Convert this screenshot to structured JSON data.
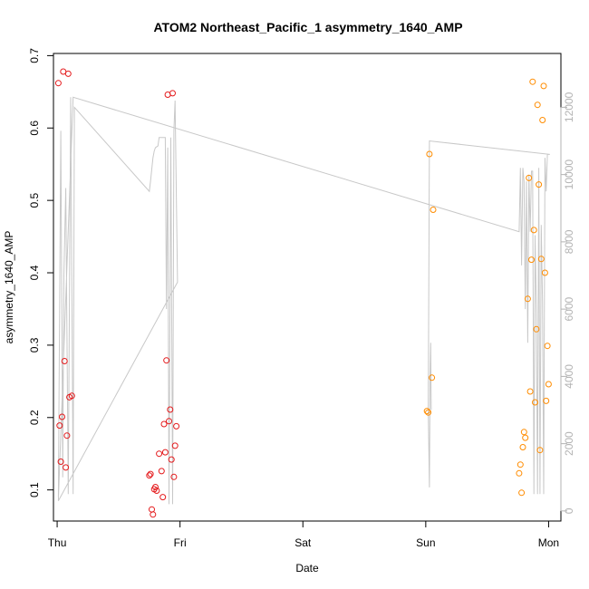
{
  "chart_data": {
    "type": "scatter",
    "title": "ATOM2 Northeast_Pacific_1 asymmetry_1640_AMP",
    "xlabel": "Date",
    "ylabel": "asymmetry_1640_AMP",
    "xlim": [
      -0.03,
      4.1
    ],
    "ylim": [
      0.057,
      0.703
    ],
    "y2lim": [
      -300,
      13600
    ],
    "x_ticks": [
      {
        "value": 0,
        "label": "Thu"
      },
      {
        "value": 1,
        "label": "Fri"
      },
      {
        "value": 2,
        "label": "Sat"
      },
      {
        "value": 3,
        "label": "Sun"
      },
      {
        "value": 4,
        "label": "Mon"
      }
    ],
    "y_ticks": [
      0.1,
      0.2,
      0.3,
      0.4,
      0.5,
      0.6,
      0.7
    ],
    "y2_ticks": [
      0,
      2000,
      4000,
      6000,
      8000,
      10000,
      12000
    ],
    "series": [
      {
        "color": "#e41a1c",
        "points": [
          [
            0.01,
            0.662
          ],
          [
            0.02,
            0.189
          ],
          [
            0.03,
            0.139
          ],
          [
            0.04,
            0.201
          ],
          [
            0.05,
            0.678
          ],
          [
            0.06,
            0.278
          ],
          [
            0.07,
            0.131
          ],
          [
            0.08,
            0.175
          ],
          [
            0.09,
            0.675
          ],
          [
            0.1,
            0.228
          ],
          [
            0.12,
            0.23
          ],
          [
            0.75,
            0.12
          ],
          [
            0.76,
            0.122
          ],
          [
            0.77,
            0.073
          ],
          [
            0.78,
            0.066
          ],
          [
            0.79,
            0.101
          ],
          [
            0.8,
            0.104
          ],
          [
            0.81,
            0.099
          ],
          [
            0.83,
            0.15
          ],
          [
            0.85,
            0.126
          ],
          [
            0.86,
            0.09
          ],
          [
            0.87,
            0.191
          ],
          [
            0.88,
            0.152
          ],
          [
            0.89,
            0.279
          ],
          [
            0.9,
            0.646
          ],
          [
            0.91,
            0.195
          ],
          [
            0.92,
            0.211
          ],
          [
            0.93,
            0.142
          ],
          [
            0.94,
            0.648
          ],
          [
            0.95,
            0.118
          ],
          [
            0.96,
            0.161
          ],
          [
            0.97,
            0.188
          ]
        ]
      },
      {
        "color": "#ff8c00",
        "points": [
          [
            3.01,
            0.209
          ],
          [
            3.02,
            0.207
          ],
          [
            3.03,
            0.564
          ],
          [
            3.05,
            0.255
          ],
          [
            3.06,
            0.487
          ],
          [
            3.76,
            0.123
          ],
          [
            3.77,
            0.135
          ],
          [
            3.78,
            0.096
          ],
          [
            3.79,
            0.159
          ],
          [
            3.8,
            0.18
          ],
          [
            3.81,
            0.172
          ],
          [
            3.83,
            0.364
          ],
          [
            3.84,
            0.531
          ],
          [
            3.85,
            0.236
          ],
          [
            3.86,
            0.418
          ],
          [
            3.87,
            0.664
          ],
          [
            3.88,
            0.459
          ],
          [
            3.89,
            0.221
          ],
          [
            3.9,
            0.322
          ],
          [
            3.91,
            0.632
          ],
          [
            3.92,
            0.522
          ],
          [
            3.93,
            0.155
          ],
          [
            3.94,
            0.419
          ],
          [
            3.95,
            0.611
          ],
          [
            3.96,
            0.658
          ],
          [
            3.97,
            0.4
          ],
          [
            3.98,
            0.223
          ],
          [
            3.99,
            0.299
          ],
          [
            4.0,
            0.246
          ]
        ]
      }
    ],
    "background_line": {
      "color": "#c8c8c8",
      "axis": "right",
      "points": [
        [
          0.01,
          400
        ],
        [
          0.03,
          11300
        ],
        [
          0.045,
          1000
        ],
        [
          0.055,
          7000
        ],
        [
          0.07,
          9600
        ],
        [
          0.09,
          500
        ],
        [
          0.11,
          12300
        ],
        [
          0.13,
          500
        ],
        [
          0.14,
          12000
        ],
        [
          0.75,
          9500
        ],
        [
          0.76,
          9800
        ],
        [
          0.78,
          10500
        ],
        [
          0.79,
          10700
        ],
        [
          0.8,
          10800
        ],
        [
          0.82,
          10850
        ],
        [
          0.83,
          11100
        ],
        [
          0.84,
          11100
        ],
        [
          0.88,
          11100
        ],
        [
          0.89,
          6000
        ],
        [
          0.9,
          10800
        ],
        [
          0.91,
          200
        ],
        [
          0.925,
          11100
        ],
        [
          0.94,
          200
        ],
        [
          0.95,
          11300
        ],
        [
          0.96,
          12200
        ],
        [
          0.98,
          6800
        ],
        [
          0.01,
          300
        ],
        [
          0.13,
          12300
        ],
        [
          3.76,
          8300
        ],
        [
          3.77,
          10200
        ],
        [
          3.78,
          7300
        ],
        [
          3.79,
          10200
        ],
        [
          3.8,
          9800
        ],
        [
          3.81,
          6000
        ],
        [
          3.82,
          9800
        ],
        [
          3.83,
          5000
        ],
        [
          3.84,
          10000
        ],
        [
          3.85,
          8300
        ],
        [
          3.86,
          10100
        ],
        [
          3.87,
          10100
        ],
        [
          3.88,
          500
        ],
        [
          3.89,
          8200
        ],
        [
          3.9,
          6000
        ],
        [
          3.91,
          500
        ],
        [
          3.92,
          10200
        ],
        [
          3.93,
          500
        ],
        [
          3.94,
          8500
        ],
        [
          3.95,
          6200
        ],
        [
          3.96,
          500
        ],
        [
          3.97,
          10500
        ],
        [
          3.98,
          9500
        ],
        [
          3.99,
          10600
        ],
        [
          4.01,
          10600
        ],
        [
          3.03,
          11000
        ],
        [
          3.02,
          3000
        ],
        [
          3.03,
          700
        ],
        [
          3.035,
          4000
        ],
        [
          3.04,
          5000
        ],
        [
          3.045,
          3000
        ]
      ]
    },
    "axis_right_color": "#b3b3b3"
  }
}
